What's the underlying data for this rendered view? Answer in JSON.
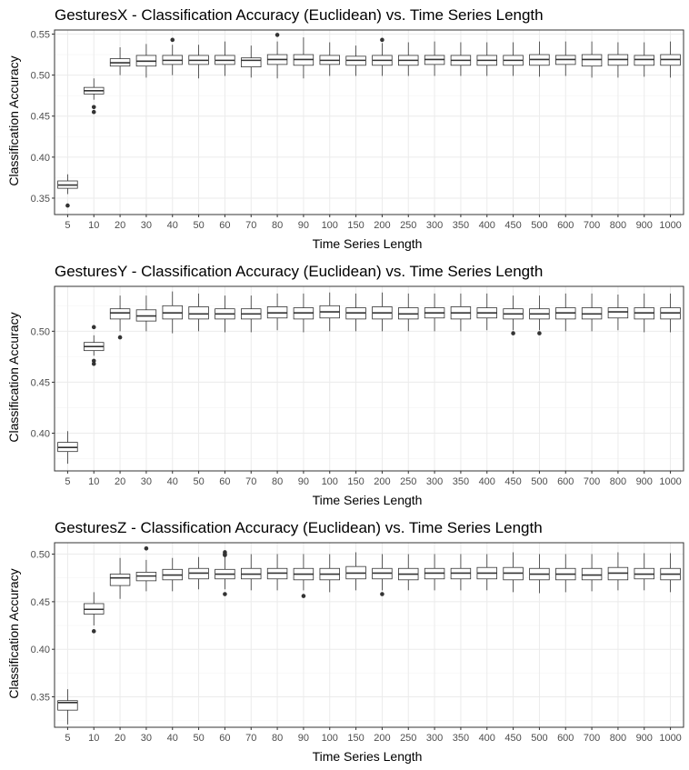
{
  "chart_data": [
    {
      "type": "box",
      "title": "GesturesX - Classification Accuracy (Euclidean) vs. Time Series Length",
      "xlabel": "Time Series Length",
      "ylabel": "Classification Accuracy",
      "categories": [
        "5",
        "10",
        "20",
        "30",
        "40",
        "50",
        "60",
        "70",
        "80",
        "90",
        "100",
        "150",
        "200",
        "250",
        "300",
        "350",
        "400",
        "450",
        "500",
        "600",
        "700",
        "800",
        "900",
        "1000"
      ],
      "ylim": [
        0.33,
        0.555
      ],
      "yticks": [
        0.35,
        0.4,
        0.45,
        0.5,
        0.55
      ],
      "yticklabels": [
        "0.35",
        "0.40",
        "0.45",
        "0.50",
        "0.55"
      ],
      "grid": true,
      "colors": {
        "box_fill": "#ffffff",
        "box_line": "#333333",
        "grid_major": "#ebebeb",
        "grid_minor": "#f5f5f5",
        "outlier": "#333333"
      },
      "boxes": [
        {
          "min": 0.355,
          "q1": 0.362,
          "median": 0.366,
          "q3": 0.371,
          "max": 0.379,
          "outliers": [
            0.341
          ]
        },
        {
          "min": 0.47,
          "q1": 0.477,
          "median": 0.481,
          "q3": 0.485,
          "max": 0.496,
          "outliers": [
            0.461,
            0.455
          ]
        },
        {
          "min": 0.5,
          "q1": 0.511,
          "median": 0.515,
          "q3": 0.52,
          "max": 0.534,
          "outliers": []
        },
        {
          "min": 0.497,
          "q1": 0.511,
          "median": 0.517,
          "q3": 0.524,
          "max": 0.538,
          "outliers": []
        },
        {
          "min": 0.5,
          "q1": 0.513,
          "median": 0.518,
          "q3": 0.524,
          "max": 0.537,
          "outliers": [
            0.543
          ]
        },
        {
          "min": 0.496,
          "q1": 0.513,
          "median": 0.518,
          "q3": 0.524,
          "max": 0.537,
          "outliers": []
        },
        {
          "min": 0.499,
          "q1": 0.513,
          "median": 0.518,
          "q3": 0.524,
          "max": 0.541,
          "outliers": []
        },
        {
          "min": 0.497,
          "q1": 0.51,
          "median": 0.518,
          "q3": 0.521,
          "max": 0.536,
          "outliers": []
        },
        {
          "min": 0.496,
          "q1": 0.513,
          "median": 0.519,
          "q3": 0.525,
          "max": 0.541,
          "outliers": [
            0.549
          ]
        },
        {
          "min": 0.496,
          "q1": 0.512,
          "median": 0.519,
          "q3": 0.525,
          "max": 0.546,
          "outliers": []
        },
        {
          "min": 0.499,
          "q1": 0.513,
          "median": 0.518,
          "q3": 0.524,
          "max": 0.54,
          "outliers": []
        },
        {
          "min": 0.499,
          "q1": 0.512,
          "median": 0.518,
          "q3": 0.523,
          "max": 0.536,
          "outliers": []
        },
        {
          "min": 0.499,
          "q1": 0.512,
          "median": 0.518,
          "q3": 0.524,
          "max": 0.539,
          "outliers": [
            0.543
          ]
        },
        {
          "min": 0.499,
          "q1": 0.512,
          "median": 0.518,
          "q3": 0.524,
          "max": 0.54,
          "outliers": []
        },
        {
          "min": 0.499,
          "q1": 0.513,
          "median": 0.519,
          "q3": 0.524,
          "max": 0.541,
          "outliers": []
        },
        {
          "min": 0.499,
          "q1": 0.512,
          "median": 0.518,
          "q3": 0.524,
          "max": 0.54,
          "outliers": []
        },
        {
          "min": 0.499,
          "q1": 0.512,
          "median": 0.518,
          "q3": 0.524,
          "max": 0.54,
          "outliers": []
        },
        {
          "min": 0.499,
          "q1": 0.512,
          "median": 0.518,
          "q3": 0.524,
          "max": 0.54,
          "outliers": []
        },
        {
          "min": 0.498,
          "q1": 0.512,
          "median": 0.519,
          "q3": 0.525,
          "max": 0.541,
          "outliers": []
        },
        {
          "min": 0.499,
          "q1": 0.513,
          "median": 0.519,
          "q3": 0.524,
          "max": 0.541,
          "outliers": []
        },
        {
          "min": 0.497,
          "q1": 0.511,
          "median": 0.519,
          "q3": 0.525,
          "max": 0.541,
          "outliers": []
        },
        {
          "min": 0.497,
          "q1": 0.512,
          "median": 0.519,
          "q3": 0.525,
          "max": 0.54,
          "outliers": []
        },
        {
          "min": 0.498,
          "q1": 0.512,
          "median": 0.519,
          "q3": 0.524,
          "max": 0.54,
          "outliers": []
        },
        {
          "min": 0.497,
          "q1": 0.512,
          "median": 0.519,
          "q3": 0.525,
          "max": 0.541,
          "outliers": []
        }
      ]
    },
    {
      "type": "box",
      "title": "GesturesY - Classification Accuracy (Euclidean) vs. Time Series Length",
      "xlabel": "Time Series Length",
      "ylabel": "Classification Accuracy",
      "categories": [
        "5",
        "10",
        "20",
        "30",
        "40",
        "50",
        "60",
        "70",
        "80",
        "90",
        "100",
        "150",
        "200",
        "250",
        "300",
        "350",
        "400",
        "450",
        "500",
        "600",
        "700",
        "800",
        "900",
        "1000"
      ],
      "ylim": [
        0.363,
        0.544
      ],
      "yticks": [
        0.4,
        0.45,
        0.5
      ],
      "yticklabels": [
        "0.40",
        "0.45",
        "0.50"
      ],
      "grid": true,
      "colors": {
        "box_fill": "#ffffff",
        "box_line": "#333333",
        "grid_major": "#ebebeb",
        "grid_minor": "#f5f5f5",
        "outlier": "#333333"
      },
      "boxes": [
        {
          "min": 0.37,
          "q1": 0.382,
          "median": 0.386,
          "q3": 0.391,
          "max": 0.402,
          "outliers": []
        },
        {
          "min": 0.476,
          "q1": 0.481,
          "median": 0.485,
          "q3": 0.489,
          "max": 0.496,
          "outliers": [
            0.504,
            0.471,
            0.468
          ]
        },
        {
          "min": 0.5,
          "q1": 0.512,
          "median": 0.518,
          "q3": 0.522,
          "max": 0.535,
          "outliers": [
            0.494
          ]
        },
        {
          "min": 0.5,
          "q1": 0.51,
          "median": 0.515,
          "q3": 0.521,
          "max": 0.535,
          "outliers": []
        },
        {
          "min": 0.498,
          "q1": 0.512,
          "median": 0.518,
          "q3": 0.525,
          "max": 0.539,
          "outliers": []
        },
        {
          "min": 0.5,
          "q1": 0.512,
          "median": 0.517,
          "q3": 0.524,
          "max": 0.537,
          "outliers": []
        },
        {
          "min": 0.499,
          "q1": 0.512,
          "median": 0.517,
          "q3": 0.522,
          "max": 0.535,
          "outliers": []
        },
        {
          "min": 0.499,
          "q1": 0.512,
          "median": 0.517,
          "q3": 0.522,
          "max": 0.535,
          "outliers": []
        },
        {
          "min": 0.501,
          "q1": 0.513,
          "median": 0.518,
          "q3": 0.524,
          "max": 0.537,
          "outliers": []
        },
        {
          "min": 0.499,
          "q1": 0.512,
          "median": 0.518,
          "q3": 0.523,
          "max": 0.537,
          "outliers": []
        },
        {
          "min": 0.5,
          "q1": 0.513,
          "median": 0.519,
          "q3": 0.525,
          "max": 0.538,
          "outliers": []
        },
        {
          "min": 0.5,
          "q1": 0.512,
          "median": 0.518,
          "q3": 0.523,
          "max": 0.537,
          "outliers": []
        },
        {
          "min": 0.5,
          "q1": 0.512,
          "median": 0.518,
          "q3": 0.524,
          "max": 0.538,
          "outliers": []
        },
        {
          "min": 0.5,
          "q1": 0.512,
          "median": 0.517,
          "q3": 0.523,
          "max": 0.537,
          "outliers": []
        },
        {
          "min": 0.5,
          "q1": 0.513,
          "median": 0.518,
          "q3": 0.523,
          "max": 0.537,
          "outliers": []
        },
        {
          "min": 0.5,
          "q1": 0.512,
          "median": 0.518,
          "q3": 0.524,
          "max": 0.537,
          "outliers": []
        },
        {
          "min": 0.501,
          "q1": 0.513,
          "median": 0.518,
          "q3": 0.523,
          "max": 0.537,
          "outliers": []
        },
        {
          "min": 0.501,
          "q1": 0.512,
          "median": 0.517,
          "q3": 0.522,
          "max": 0.535,
          "outliers": [
            0.498
          ]
        },
        {
          "min": 0.501,
          "q1": 0.512,
          "median": 0.517,
          "q3": 0.522,
          "max": 0.535,
          "outliers": [
            0.498
          ]
        },
        {
          "min": 0.5,
          "q1": 0.512,
          "median": 0.518,
          "q3": 0.523,
          "max": 0.537,
          "outliers": []
        },
        {
          "min": 0.5,
          "q1": 0.512,
          "median": 0.517,
          "q3": 0.523,
          "max": 0.537,
          "outliers": []
        },
        {
          "min": 0.501,
          "q1": 0.513,
          "median": 0.519,
          "q3": 0.523,
          "max": 0.536,
          "outliers": []
        },
        {
          "min": 0.499,
          "q1": 0.512,
          "median": 0.518,
          "q3": 0.523,
          "max": 0.537,
          "outliers": []
        },
        {
          "min": 0.499,
          "q1": 0.512,
          "median": 0.518,
          "q3": 0.523,
          "max": 0.537,
          "outliers": []
        }
      ]
    },
    {
      "type": "box",
      "title": "GesturesZ - Classification Accuracy (Euclidean) vs. Time Series Length",
      "xlabel": "Time Series Length",
      "ylabel": "Classification Accuracy",
      "categories": [
        "5",
        "10",
        "20",
        "30",
        "40",
        "50",
        "60",
        "70",
        "80",
        "90",
        "100",
        "150",
        "200",
        "250",
        "300",
        "350",
        "400",
        "450",
        "500",
        "600",
        "700",
        "800",
        "900",
        "1000"
      ],
      "ylim": [
        0.318,
        0.512
      ],
      "yticks": [
        0.35,
        0.4,
        0.45,
        0.5
      ],
      "yticklabels": [
        "0.35",
        "0.40",
        "0.45",
        "0.50"
      ],
      "grid": true,
      "colors": {
        "box_fill": "#ffffff",
        "box_line": "#333333",
        "grid_major": "#ebebeb",
        "grid_minor": "#f5f5f5",
        "outlier": "#333333"
      },
      "boxes": [
        {
          "min": 0.321,
          "q1": 0.336,
          "median": 0.344,
          "q3": 0.346,
          "max": 0.358,
          "outliers": []
        },
        {
          "min": 0.425,
          "q1": 0.437,
          "median": 0.442,
          "q3": 0.448,
          "max": 0.46,
          "outliers": [
            0.419
          ]
        },
        {
          "min": 0.453,
          "q1": 0.467,
          "median": 0.475,
          "q3": 0.479,
          "max": 0.496,
          "outliers": []
        },
        {
          "min": 0.461,
          "q1": 0.472,
          "median": 0.477,
          "q3": 0.481,
          "max": 0.494,
          "outliers": [
            0.506
          ]
        },
        {
          "min": 0.461,
          "q1": 0.473,
          "median": 0.478,
          "q3": 0.484,
          "max": 0.496,
          "outliers": []
        },
        {
          "min": 0.463,
          "q1": 0.474,
          "median": 0.48,
          "q3": 0.485,
          "max": 0.497,
          "outliers": []
        },
        {
          "min": 0.463,
          "q1": 0.474,
          "median": 0.479,
          "q3": 0.484,
          "max": 0.497,
          "outliers": [
            0.502,
            0.5,
            0.499,
            0.458
          ]
        },
        {
          "min": 0.462,
          "q1": 0.474,
          "median": 0.479,
          "q3": 0.485,
          "max": 0.5,
          "outliers": []
        },
        {
          "min": 0.462,
          "q1": 0.474,
          "median": 0.48,
          "q3": 0.485,
          "max": 0.5,
          "outliers": []
        },
        {
          "min": 0.462,
          "q1": 0.473,
          "median": 0.479,
          "q3": 0.485,
          "max": 0.5,
          "outliers": [
            0.456
          ]
        },
        {
          "min": 0.46,
          "q1": 0.473,
          "median": 0.479,
          "q3": 0.485,
          "max": 0.5,
          "outliers": []
        },
        {
          "min": 0.462,
          "q1": 0.474,
          "median": 0.48,
          "q3": 0.487,
          "max": 0.502,
          "outliers": []
        },
        {
          "min": 0.462,
          "q1": 0.474,
          "median": 0.48,
          "q3": 0.485,
          "max": 0.5,
          "outliers": [
            0.458
          ]
        },
        {
          "min": 0.462,
          "q1": 0.473,
          "median": 0.479,
          "q3": 0.485,
          "max": 0.5,
          "outliers": []
        },
        {
          "min": 0.462,
          "q1": 0.474,
          "median": 0.48,
          "q3": 0.485,
          "max": 0.5,
          "outliers": []
        },
        {
          "min": 0.462,
          "q1": 0.474,
          "median": 0.48,
          "q3": 0.485,
          "max": 0.5,
          "outliers": []
        },
        {
          "min": 0.462,
          "q1": 0.474,
          "median": 0.48,
          "q3": 0.486,
          "max": 0.5,
          "outliers": []
        },
        {
          "min": 0.46,
          "q1": 0.473,
          "median": 0.48,
          "q3": 0.486,
          "max": 0.502,
          "outliers": []
        },
        {
          "min": 0.459,
          "q1": 0.473,
          "median": 0.479,
          "q3": 0.485,
          "max": 0.5,
          "outliers": []
        },
        {
          "min": 0.46,
          "q1": 0.473,
          "median": 0.479,
          "q3": 0.485,
          "max": 0.5,
          "outliers": []
        },
        {
          "min": 0.461,
          "q1": 0.473,
          "median": 0.478,
          "q3": 0.485,
          "max": 0.5,
          "outliers": []
        },
        {
          "min": 0.462,
          "q1": 0.473,
          "median": 0.48,
          "q3": 0.486,
          "max": 0.502,
          "outliers": []
        },
        {
          "min": 0.462,
          "q1": 0.474,
          "median": 0.479,
          "q3": 0.485,
          "max": 0.501,
          "outliers": []
        },
        {
          "min": 0.46,
          "q1": 0.473,
          "median": 0.479,
          "q3": 0.485,
          "max": 0.501,
          "outliers": []
        }
      ]
    }
  ]
}
